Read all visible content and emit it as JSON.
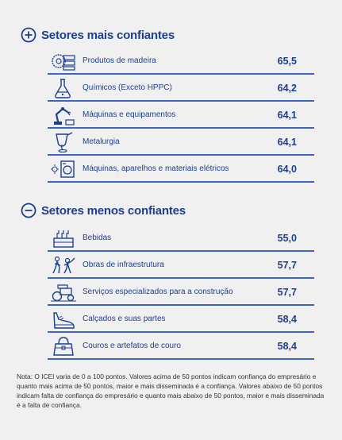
{
  "top": {
    "title": "Setores mais confiantes",
    "items": [
      {
        "label": "Produtos de madeira",
        "value": "65,5",
        "icon": "saw-blade-icon"
      },
      {
        "label": "Químicos (Exceto HPPC)",
        "value": "64,2",
        "icon": "flask-icon"
      },
      {
        "label": "Máquinas e equipamentos",
        "value": "64,1",
        "icon": "robot-arm-icon"
      },
      {
        "label": "Metalurgia",
        "value": "64,1",
        "icon": "ladle-icon"
      },
      {
        "label": "Máquinas, aparelhos e materiais elétricos",
        "value": "64,0",
        "icon": "washing-machine-icon"
      }
    ]
  },
  "bottom": {
    "title": "Setores menos confiantes",
    "items": [
      {
        "label": "Bebidas",
        "value": "55,0",
        "icon": "bottle-crate-icon"
      },
      {
        "label": "Obras de infraestrutura",
        "value": "57,7",
        "icon": "workers-icon"
      },
      {
        "label": "Serviços especializados para a construção",
        "value": "57,7",
        "icon": "road-roller-icon"
      },
      {
        "label": "Calçados e suas partes",
        "value": "58,4",
        "icon": "shoe-icon"
      },
      {
        "label": "Couros e artefatos de couro",
        "value": "58,4",
        "icon": "handbag-icon"
      }
    ]
  },
  "note": "Nota: O ICEI varia de 0 a 100 pontos. Valores acima de 50 pontos indicam confiança do empresário e quanto mais acima de 50 pontos, maior e mais disseminada é a confiança. Valores abaixo de 50 pontos indicam falta de confiança do empresário e quanto mais abaixo de 50 pontos, maior e mais disseminada é a falta de confiança.",
  "colors": {
    "accent": "#3c66c2",
    "text": "#1d3f8f"
  }
}
